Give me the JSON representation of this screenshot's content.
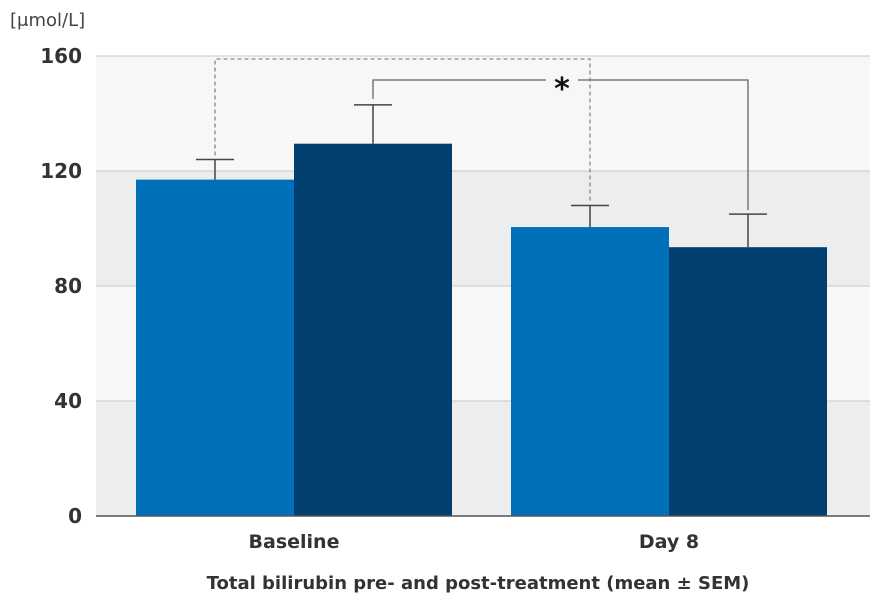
{
  "chart_data": {
    "type": "bar",
    "ylabel": "[μmol/L]",
    "xlabel": "Total bilirubin pre- and post-treatment (mean ± SEM)",
    "categories": [
      "Baseline",
      "Day 8"
    ],
    "series": [
      {
        "values": [
          117,
          100.5
        ],
        "error": [
          7,
          7.5
        ],
        "color": "#0070bb"
      },
      {
        "values": [
          129.5,
          93.5
        ],
        "error": [
          13.5,
          11.5
        ],
        "color": "#003f70"
      }
    ],
    "ylim": [
      0,
      160
    ],
    "yticks": [
      0,
      40,
      80,
      120,
      160
    ],
    "grid": true,
    "band_colors": [
      "#ebedee",
      "#f7f7f7"
    ],
    "annotation": {
      "symbol": "*",
      "meaning": "significance bracket"
    }
  }
}
